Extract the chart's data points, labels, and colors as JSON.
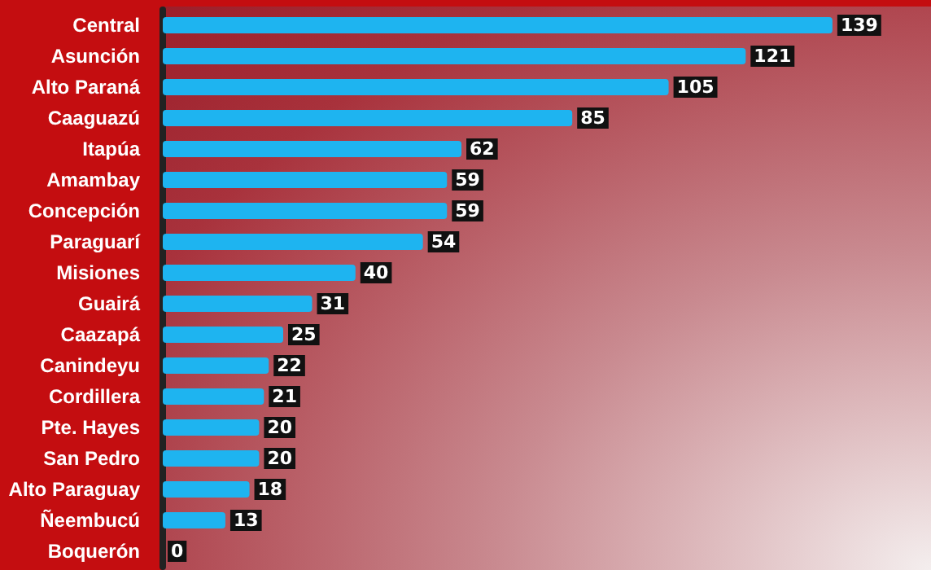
{
  "chart_data": {
    "type": "bar",
    "orientation": "horizontal",
    "categories": [
      "Central",
      "Asunción",
      "Alto Paraná",
      "Caaguazú",
      "Itapúa",
      "Amambay",
      "Concepción",
      "Paraguarí",
      "Misiones",
      "Guairá",
      "Caazapá",
      "Canindeyu",
      "Cordillera",
      "Pte. Hayes",
      "San Pedro",
      "Alto Paraguay",
      "Ñeembucú",
      "Boquerón"
    ],
    "values": [
      139,
      121,
      105,
      85,
      62,
      59,
      59,
      54,
      40,
      31,
      25,
      22,
      21,
      20,
      20,
      18,
      13,
      0
    ],
    "color": "#1eb4f0",
    "data_labels": true
  }
}
